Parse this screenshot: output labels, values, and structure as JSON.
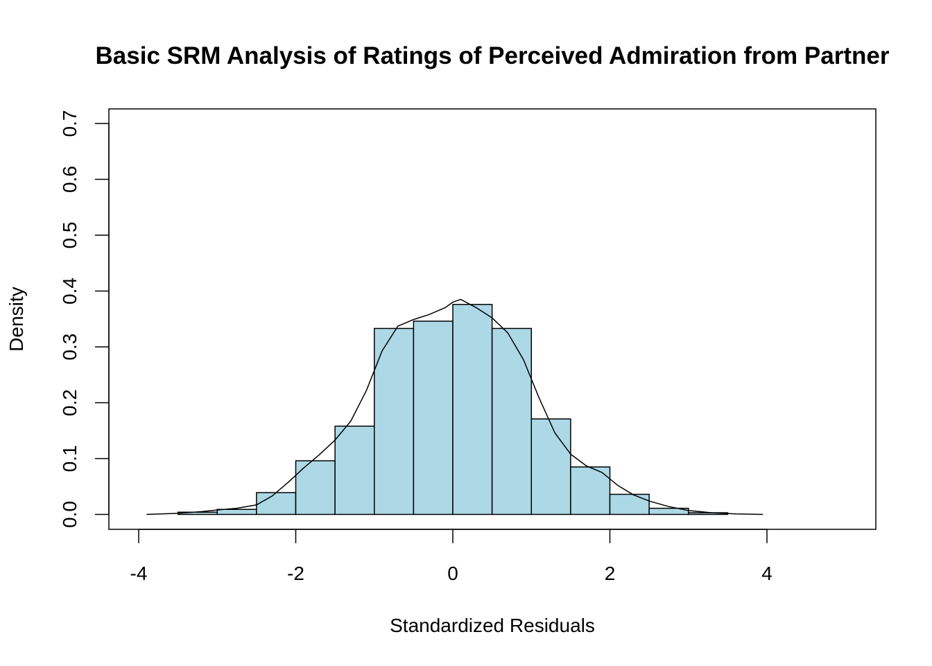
{
  "chart_data": {
    "type": "histogram",
    "title": "Basic SRM Analysis of Ratings of Perceived Admiration from Partner",
    "xlabel": "Standardized Residuals",
    "ylabel": "Density",
    "xlim": [
      -4,
      5
    ],
    "ylim": [
      0,
      0.7
    ],
    "x_ticks": [
      "-4",
      "-2",
      "0",
      "2",
      "4"
    ],
    "y_ticks": [
      "0.0",
      "0.1",
      "0.2",
      "0.3",
      "0.4",
      "0.5",
      "0.6",
      "0.7"
    ],
    "bins": [
      {
        "x0": -4.0,
        "x1": -3.5,
        "density": 0.0
      },
      {
        "x0": -3.5,
        "x1": -3.0,
        "density": 0.004
      },
      {
        "x0": -3.0,
        "x1": -2.5,
        "density": 0.009
      },
      {
        "x0": -2.5,
        "x1": -2.0,
        "density": 0.039
      },
      {
        "x0": -2.0,
        "x1": -1.5,
        "density": 0.096
      },
      {
        "x0": -1.5,
        "x1": -1.0,
        "density": 0.158
      },
      {
        "x0": -1.0,
        "x1": -0.5,
        "density": 0.333
      },
      {
        "x0": -0.5,
        "x1": 0.0,
        "density": 0.346
      },
      {
        "x0": 0.0,
        "x1": 0.5,
        "density": 0.376
      },
      {
        "x0": 0.5,
        "x1": 1.0,
        "density": 0.333
      },
      {
        "x0": 1.0,
        "x1": 1.5,
        "density": 0.171
      },
      {
        "x0": 1.5,
        "x1": 2.0,
        "density": 0.085
      },
      {
        "x0": 2.0,
        "x1": 2.5,
        "density": 0.036
      },
      {
        "x0": 2.5,
        "x1": 3.0,
        "density": 0.011
      },
      {
        "x0": 3.0,
        "x1": 3.5,
        "density": 0.003
      },
      {
        "x0": 3.5,
        "x1": 4.0,
        "density": 0.0
      }
    ],
    "density_curve": {
      "x": [
        -3.9,
        -3.5,
        -3.2,
        -3.0,
        -2.75,
        -2.5,
        -2.3,
        -2.1,
        -1.9,
        -1.7,
        -1.5,
        -1.3,
        -1.1,
        -0.9,
        -0.7,
        -0.5,
        -0.3,
        -0.1,
        0.0,
        0.1,
        0.3,
        0.5,
        0.7,
        0.9,
        1.1,
        1.3,
        1.5,
        1.7,
        1.9,
        2.1,
        2.3,
        2.5,
        2.75,
        3.0,
        3.3,
        3.6,
        3.95
      ],
      "y": [
        0.0,
        0.002,
        0.005,
        0.008,
        0.011,
        0.017,
        0.033,
        0.057,
        0.083,
        0.107,
        0.133,
        0.167,
        0.222,
        0.293,
        0.337,
        0.349,
        0.358,
        0.37,
        0.38,
        0.385,
        0.37,
        0.352,
        0.325,
        0.277,
        0.208,
        0.146,
        0.108,
        0.087,
        0.075,
        0.052,
        0.035,
        0.024,
        0.014,
        0.007,
        0.003,
        0.001,
        0.0
      ]
    },
    "colors": {
      "bar_fill": "#ADD8E6",
      "bar_stroke": "#000000",
      "curve": "#000000"
    },
    "grid": false,
    "legend": "none"
  }
}
